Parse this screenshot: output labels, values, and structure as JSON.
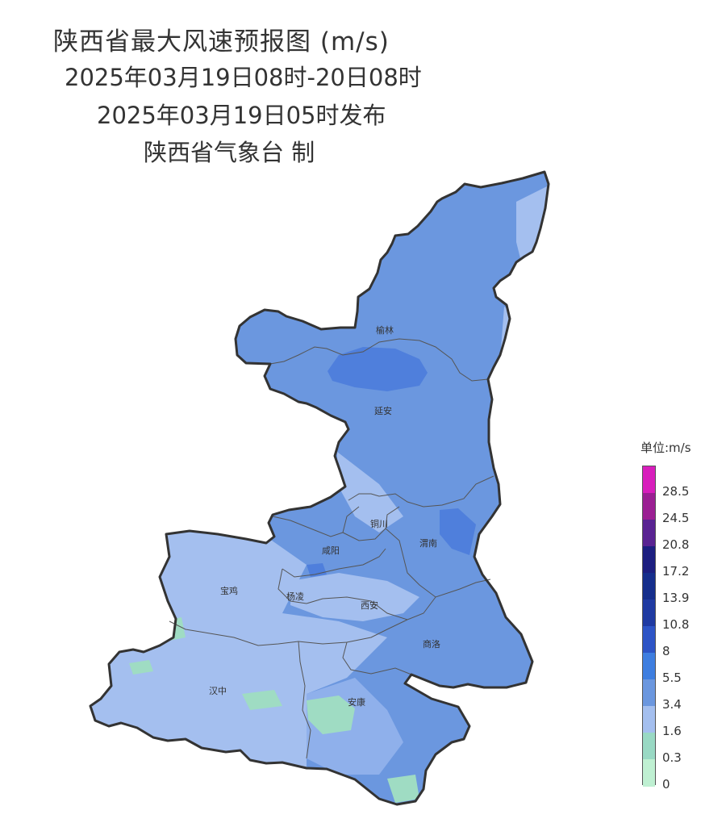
{
  "header": {
    "title": "陕西省最大风速预报图 (m/s)",
    "period": "2025年03月19日08时-20日08时",
    "issued": "2025年03月19日05时发布",
    "agency": "陕西省气象台 制"
  },
  "map": {
    "cities": {
      "yulin": "榆林",
      "yanan": "延安",
      "tongchuan": "铜川",
      "weinan": "渭南",
      "xianyang": "咸阳",
      "baoji": "宝鸡",
      "yangling": "杨凌",
      "xian": "西安",
      "shangluo": "商洛",
      "hanzhong": "汉中",
      "ankang": "安康"
    },
    "colors": {
      "border": "#333333",
      "base_fill": "#6b97df",
      "light_fill": "#a4bfef",
      "strong_fill": "#4f7fdc",
      "calm_fill": "#9fdcc3"
    }
  },
  "legend": {
    "unit": "单位:m/s",
    "labels": [
      "28.5",
      "24.5",
      "20.8",
      "17.2",
      "13.9",
      "10.8",
      "8",
      "5.5",
      "3.4",
      "1.6",
      "0.3",
      "0"
    ],
    "colors": [
      "#d81ebc",
      "#9b1f93",
      "#592392",
      "#1c1e80",
      "#152e8c",
      "#1f3aa2",
      "#2d54c6",
      "#3e7ee0",
      "#6b97df",
      "#a4bfef",
      "#99d9c4",
      "#bff0d2"
    ]
  }
}
